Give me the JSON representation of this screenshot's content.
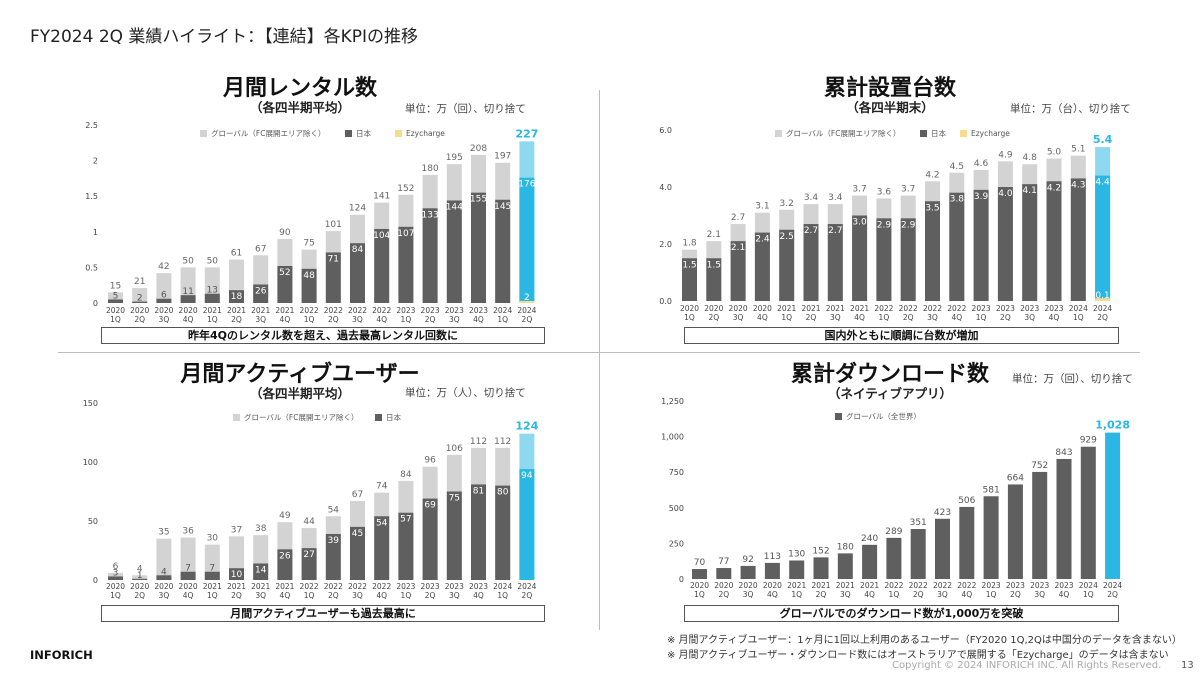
{
  "page": {
    "title": "FY2024 2Q 業績ハイライト：【連結】各KPIの推移",
    "brand": "INFORICH",
    "copyright": "Copyright © 2024 INFORICH INC. All Rights Reserved.",
    "page_number": "13",
    "footnotes": [
      "※ 月間アクティブユーザー：1ヶ月に1回以上利用のあるユーザー（FY2020 1Q,2Qは中国分のデータを含まない）",
      "※ 月間アクティブユーザー・ダウンロード数にはオーストラリアで展開する「Ezycharge」のデータは含まない"
    ]
  },
  "colors": {
    "global": "#d3d3d3",
    "japan": "#5f5f5f",
    "ezy": "#f6dc8c",
    "highlight": "#2bb7e3",
    "highlight_light": "#8ed9ef"
  },
  "panels": [
    {
      "title": "月間レンタル数",
      "subtitle": "（各四半期平均）",
      "unit": "単位：万（回）、切り捨て",
      "caption": "昨年4Qのレンタル数を超え、過去最高レンタル回数に"
    },
    {
      "title": "累計設置台数",
      "subtitle": "（各四半期末）",
      "unit": "単位：万（台）、切り捨て",
      "caption": "国内外ともに順調に台数が増加"
    },
    {
      "title": "月間アクティブユーザー",
      "subtitle": "（各四半期平均）",
      "unit": "単位：万（人）、切り捨て",
      "caption": "月間アクティブユーザーも過去最高に"
    },
    {
      "title": "累計ダウンロード数",
      "subtitle": "（ネイティブアプリ）",
      "unit": "単位：万（回）、切り捨て",
      "caption": "グローバルでのダウンロード数が1,000万を突破"
    }
  ],
  "chart_data": [
    {
      "type": "bar",
      "title": "月間レンタル数",
      "categories": [
        "2020 1Q",
        "2020 2Q",
        "2020 3Q",
        "2020 4Q",
        "2021 1Q",
        "2021 2Q",
        "2021 3Q",
        "2021 4Q",
        "2022 1Q",
        "2022 2Q",
        "2022 3Q",
        "2022 4Q",
        "2023 1Q",
        "2023 2Q",
        "2023 3Q",
        "2023 4Q",
        "2024 1Q",
        "2024 2Q"
      ],
      "yticks": [
        "0",
        "0.5",
        "1",
        "1.5",
        "2",
        "2.5"
      ],
      "ylim": [
        0,
        250
      ],
      "legend": [
        "グローバル（FC展開エリア除く）",
        "日本",
        "Ezycharge"
      ],
      "legend_placement": "top",
      "totals": [
        15,
        21,
        42,
        50,
        50,
        61,
        67,
        90,
        75,
        101,
        124,
        141,
        152,
        180,
        195,
        208,
        197,
        227
      ],
      "japan": [
        5,
        2,
        6,
        11,
        13,
        18,
        26,
        52,
        48,
        71,
        84,
        104,
        107,
        133,
        144,
        155,
        145,
        176
      ],
      "ezy": [
        null,
        null,
        null,
        null,
        null,
        null,
        null,
        null,
        null,
        null,
        null,
        null,
        null,
        null,
        null,
        null,
        null,
        2
      ]
    },
    {
      "type": "bar",
      "title": "累計設置台数",
      "categories": [
        "2020 1Q",
        "2020 2Q",
        "2020 3Q",
        "2020 4Q",
        "2021 1Q",
        "2021 2Q",
        "2021 3Q",
        "2021 4Q",
        "2022 1Q",
        "2022 2Q",
        "2022 3Q",
        "2022 4Q",
        "2023 1Q",
        "2023 2Q",
        "2023 3Q",
        "2023 4Q",
        "2024 1Q",
        "2024 2Q"
      ],
      "yticks": [
        "0.0",
        "2.0",
        "4.0",
        "6.0"
      ],
      "ylim": [
        0,
        6
      ],
      "legend": [
        "グローバル（FC展開エリア除く）",
        "日本",
        "Ezycharge"
      ],
      "legend_placement": "top",
      "totals": [
        1.8,
        2.1,
        2.7,
        3.1,
        3.2,
        3.4,
        3.4,
        3.7,
        3.6,
        3.7,
        4.2,
        4.5,
        4.6,
        4.9,
        4.8,
        5.0,
        5.1,
        5.4
      ],
      "japan": [
        1.5,
        1.5,
        2.1,
        2.4,
        2.5,
        2.7,
        2.7,
        3.0,
        2.9,
        2.9,
        3.5,
        3.8,
        3.9,
        4.0,
        4.1,
        4.2,
        4.3,
        4.4
      ],
      "ezy": [
        null,
        null,
        null,
        null,
        null,
        null,
        null,
        null,
        null,
        null,
        null,
        null,
        null,
        null,
        null,
        null,
        null,
        0.1
      ]
    },
    {
      "type": "bar",
      "title": "月間アクティブユーザー",
      "categories": [
        "2020 1Q",
        "2020 2Q",
        "2020 3Q",
        "2020 4Q",
        "2021 1Q",
        "2021 2Q",
        "2021 3Q",
        "2021 4Q",
        "2022 1Q",
        "2022 2Q",
        "2022 3Q",
        "2022 4Q",
        "2023 1Q",
        "2023 2Q",
        "2023 3Q",
        "2023 4Q",
        "2024 1Q",
        "2024 2Q"
      ],
      "yticks": [
        "0",
        "50",
        "100",
        "150"
      ],
      "ylim": [
        0,
        150
      ],
      "legend": [
        "グローバル（FC展開エリア除く）",
        "日本"
      ],
      "legend_placement": "top",
      "totals": [
        6,
        4,
        35,
        36,
        30,
        37,
        38,
        49,
        44,
        54,
        67,
        74,
        84,
        96,
        106,
        112,
        112,
        124
      ],
      "japan": [
        3,
        1,
        4,
        7,
        7,
        10,
        14,
        26,
        27,
        39,
        45,
        54,
        57,
        69,
        75,
        81,
        80,
        94
      ],
      "ezy": null
    },
    {
      "type": "bar",
      "title": "累計ダウンロード数",
      "categories": [
        "2020 1Q",
        "2020 2Q",
        "2020 3Q",
        "2020 4Q",
        "2021 1Q",
        "2021 2Q",
        "2021 3Q",
        "2021 4Q",
        "2022 1Q",
        "2022 2Q",
        "2022 3Q",
        "2022 4Q",
        "2023 1Q",
        "2023 2Q",
        "2023 3Q",
        "2023 4Q",
        "2024 1Q",
        "2024 2Q"
      ],
      "yticks": [
        "0",
        "250",
        "500",
        "750",
        "1,000",
        "1,250"
      ],
      "ylim": [
        0,
        1250
      ],
      "legend": [
        "グローバル（全世界）"
      ],
      "legend_placement": "top",
      "totals": [
        70,
        77,
        92,
        113,
        130,
        152,
        180,
        240,
        289,
        351,
        423,
        506,
        581,
        664,
        752,
        843,
        929,
        1028
      ],
      "japan": null,
      "ezy": null
    }
  ]
}
